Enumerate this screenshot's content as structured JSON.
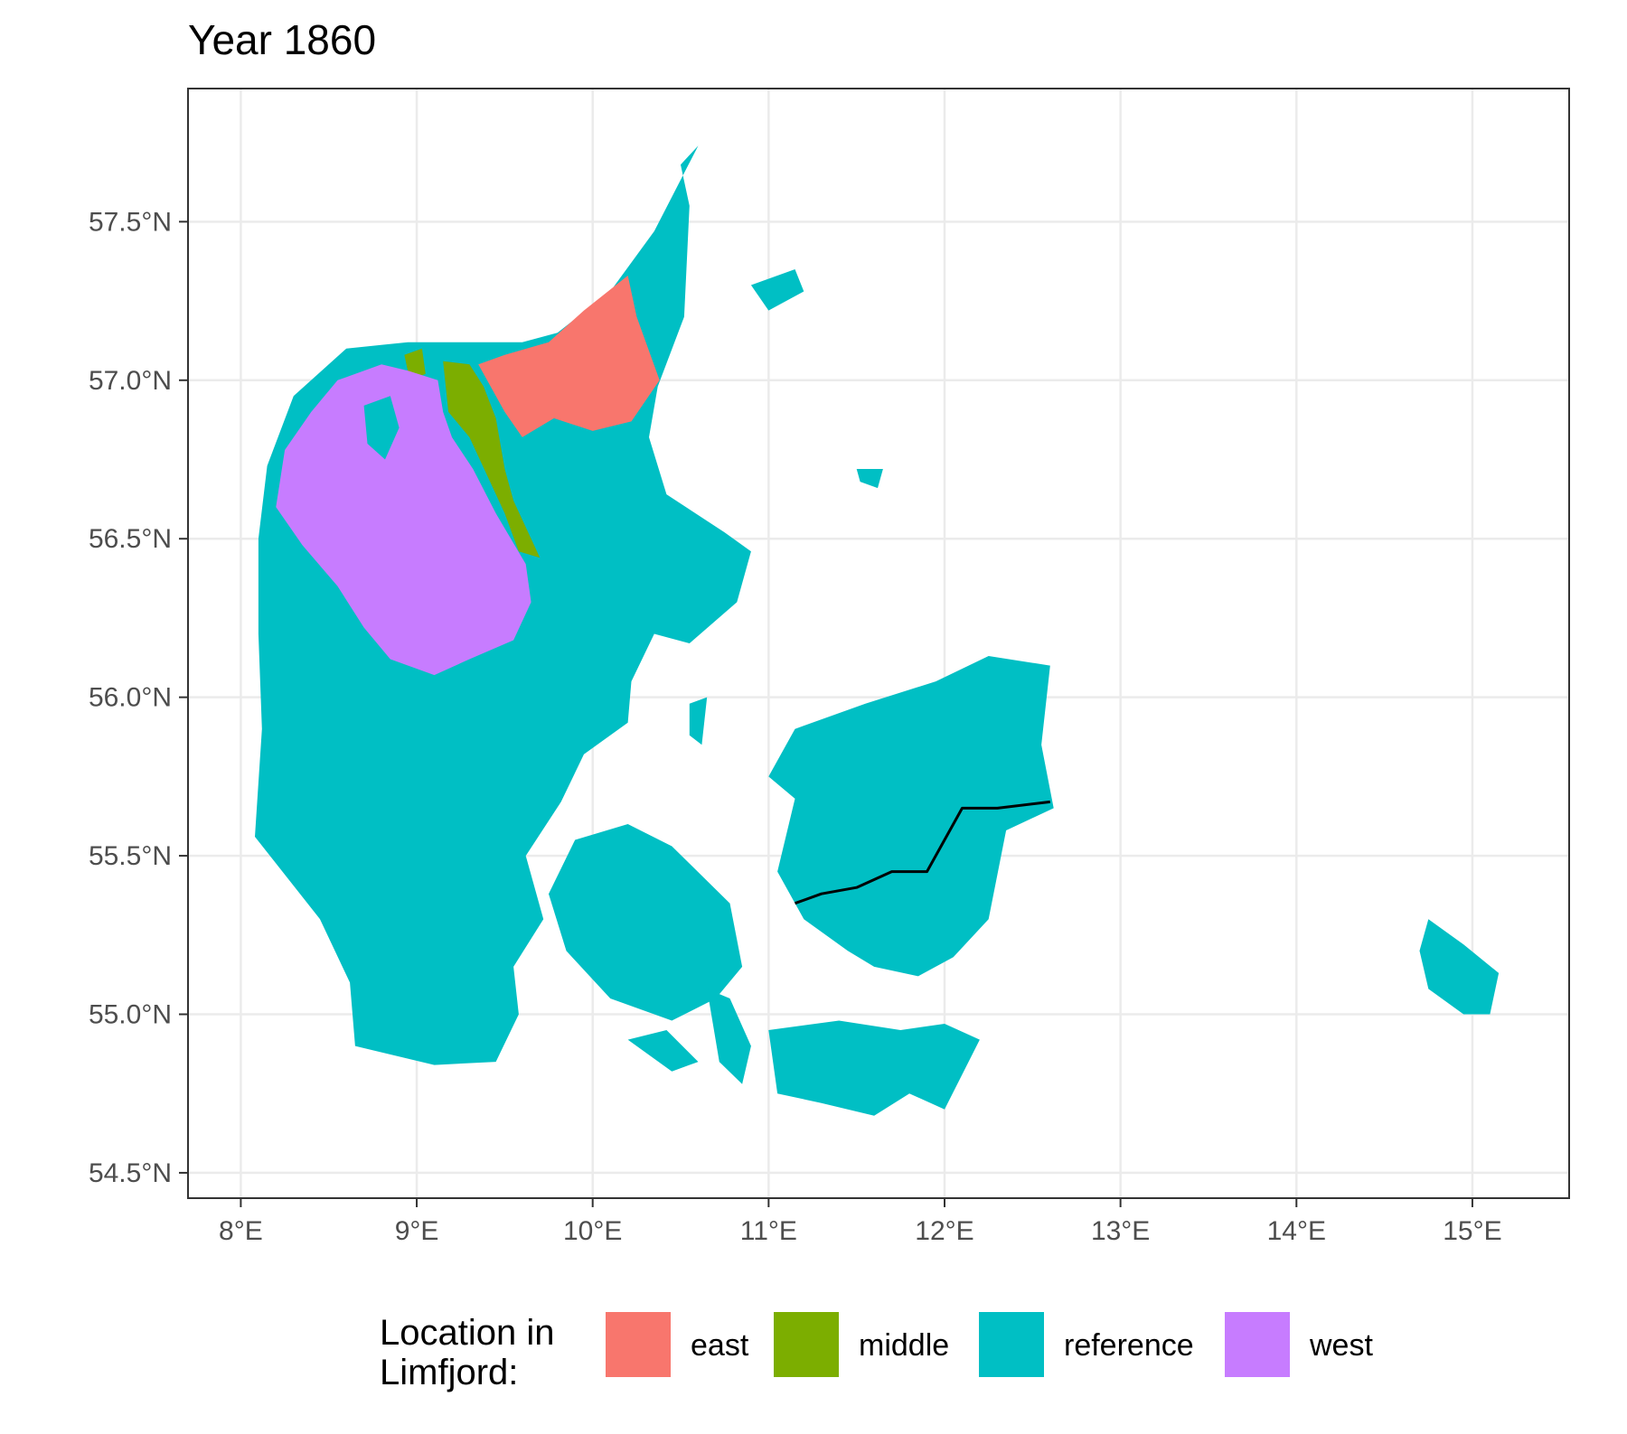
{
  "title": "Year 1860",
  "map": {
    "projection": "equirectangular",
    "lon_range": [
      7.7,
      15.55
    ],
    "lat_range": [
      54.42,
      57.92
    ],
    "grid": true,
    "x_ticks": [
      {
        "lon": 8,
        "label": "8°E"
      },
      {
        "lon": 9,
        "label": "9°E"
      },
      {
        "lon": 10,
        "label": "10°E"
      },
      {
        "lon": 11,
        "label": "11°E"
      },
      {
        "lon": 12,
        "label": "12°E"
      },
      {
        "lon": 13,
        "label": "13°E"
      },
      {
        "lon": 14,
        "label": "14°E"
      },
      {
        "lon": 15,
        "label": "15°E"
      }
    ],
    "y_ticks": [
      {
        "lat": 54.5,
        "label": "54.5°N"
      },
      {
        "lat": 55.0,
        "label": "55.0°N"
      },
      {
        "lat": 55.5,
        "label": "55.5°N"
      },
      {
        "lat": 56.0,
        "label": "56.0°N"
      },
      {
        "lat": 56.5,
        "label": "56.5°N"
      },
      {
        "lat": 57.0,
        "label": "57.0°N"
      },
      {
        "lat": 57.5,
        "label": "57.5°N"
      }
    ],
    "regions": [
      {
        "name": "jutland",
        "category": "reference",
        "coords": [
          [
            8.6,
            57.1
          ],
          [
            8.95,
            57.12
          ],
          [
            9.3,
            57.12
          ],
          [
            9.6,
            57.12
          ],
          [
            9.8,
            57.15
          ],
          [
            10.1,
            57.28
          ],
          [
            10.35,
            57.47
          ],
          [
            10.6,
            57.74
          ],
          [
            10.5,
            57.68
          ],
          [
            10.55,
            57.55
          ],
          [
            10.52,
            57.2
          ],
          [
            10.37,
            56.98
          ],
          [
            10.32,
            56.82
          ],
          [
            10.42,
            56.64
          ],
          [
            10.75,
            56.52
          ],
          [
            10.9,
            56.46
          ],
          [
            10.82,
            56.3
          ],
          [
            10.55,
            56.17
          ],
          [
            10.35,
            56.2
          ],
          [
            10.22,
            56.05
          ],
          [
            10.2,
            55.92
          ],
          [
            9.95,
            55.82
          ],
          [
            9.82,
            55.67
          ],
          [
            9.62,
            55.5
          ],
          [
            9.72,
            55.3
          ],
          [
            9.55,
            55.15
          ],
          [
            9.58,
            55.0
          ],
          [
            9.45,
            54.85
          ],
          [
            9.1,
            54.84
          ],
          [
            8.65,
            54.9
          ],
          [
            8.62,
            55.1
          ],
          [
            8.45,
            55.3
          ],
          [
            8.08,
            55.56
          ],
          [
            8.12,
            55.9
          ],
          [
            8.1,
            56.2
          ],
          [
            8.1,
            56.5
          ],
          [
            8.15,
            56.73
          ],
          [
            8.3,
            56.95
          ],
          [
            8.6,
            57.1
          ]
        ]
      },
      {
        "name": "east",
        "category": "east",
        "coords": [
          [
            9.35,
            57.05
          ],
          [
            9.5,
            57.08
          ],
          [
            9.75,
            57.12
          ],
          [
            9.95,
            57.22
          ],
          [
            10.2,
            57.33
          ],
          [
            10.25,
            57.2
          ],
          [
            10.38,
            57.0
          ],
          [
            10.22,
            56.87
          ],
          [
            10.0,
            56.84
          ],
          [
            9.78,
            56.88
          ],
          [
            9.6,
            56.82
          ],
          [
            9.5,
            56.9
          ],
          [
            9.42,
            56.98
          ],
          [
            9.35,
            57.05
          ]
        ]
      },
      {
        "name": "middle",
        "category": "middle",
        "coords": [
          [
            9.15,
            57.06
          ],
          [
            9.3,
            57.05
          ],
          [
            9.38,
            56.98
          ],
          [
            9.45,
            56.88
          ],
          [
            9.5,
            56.72
          ],
          [
            9.55,
            56.62
          ],
          [
            9.65,
            56.5
          ],
          [
            9.7,
            56.44
          ],
          [
            9.58,
            56.46
          ],
          [
            9.5,
            56.58
          ],
          [
            9.4,
            56.7
          ],
          [
            9.3,
            56.82
          ],
          [
            9.18,
            56.9
          ],
          [
            9.15,
            57.06
          ]
        ]
      },
      {
        "name": "middle-tip",
        "category": "middle",
        "coords": [
          [
            8.93,
            57.08
          ],
          [
            9.03,
            57.1
          ],
          [
            9.05,
            57.02
          ],
          [
            8.96,
            57.0
          ],
          [
            8.93,
            57.08
          ]
        ]
      },
      {
        "name": "west",
        "category": "west",
        "coords": [
          [
            8.55,
            57.0
          ],
          [
            8.8,
            57.05
          ],
          [
            8.95,
            57.03
          ],
          [
            9.12,
            57.0
          ],
          [
            9.15,
            56.9
          ],
          [
            9.2,
            56.82
          ],
          [
            9.32,
            56.72
          ],
          [
            9.45,
            56.58
          ],
          [
            9.62,
            56.42
          ],
          [
            9.65,
            56.3
          ],
          [
            9.55,
            56.18
          ],
          [
            9.3,
            56.12
          ],
          [
            9.1,
            56.07
          ],
          [
            8.85,
            56.12
          ],
          [
            8.7,
            56.22
          ],
          [
            8.55,
            56.35
          ],
          [
            8.35,
            56.48
          ],
          [
            8.2,
            56.6
          ],
          [
            8.25,
            56.78
          ],
          [
            8.4,
            56.9
          ],
          [
            8.55,
            57.0
          ]
        ]
      },
      {
        "name": "mors",
        "category": "reference",
        "coords": [
          [
            8.7,
            56.92
          ],
          [
            8.85,
            56.95
          ],
          [
            8.9,
            56.85
          ],
          [
            8.82,
            56.75
          ],
          [
            8.72,
            56.8
          ],
          [
            8.7,
            56.92
          ]
        ]
      },
      {
        "name": "funen",
        "category": "reference",
        "coords": [
          [
            9.9,
            55.55
          ],
          [
            10.2,
            55.6
          ],
          [
            10.45,
            55.53
          ],
          [
            10.78,
            55.35
          ],
          [
            10.85,
            55.15
          ],
          [
            10.7,
            55.05
          ],
          [
            10.45,
            54.98
          ],
          [
            10.1,
            55.05
          ],
          [
            9.85,
            55.2
          ],
          [
            9.75,
            55.38
          ],
          [
            9.9,
            55.55
          ]
        ]
      },
      {
        "name": "zealand",
        "category": "reference",
        "coords": [
          [
            11.15,
            55.9
          ],
          [
            11.55,
            55.98
          ],
          [
            11.95,
            56.05
          ],
          [
            12.25,
            56.13
          ],
          [
            12.6,
            56.1
          ],
          [
            12.55,
            55.85
          ],
          [
            12.62,
            55.65
          ],
          [
            12.35,
            55.58
          ],
          [
            12.25,
            55.3
          ],
          [
            12.05,
            55.18
          ],
          [
            11.85,
            55.12
          ],
          [
            11.6,
            55.15
          ],
          [
            11.45,
            55.2
          ],
          [
            11.2,
            55.3
          ],
          [
            11.05,
            55.45
          ],
          [
            11.15,
            55.68
          ],
          [
            11.0,
            55.75
          ],
          [
            11.15,
            55.9
          ]
        ]
      },
      {
        "name": "lolland-falster",
        "category": "reference",
        "coords": [
          [
            11.0,
            54.95
          ],
          [
            11.4,
            54.98
          ],
          [
            11.75,
            54.95
          ],
          [
            12.0,
            54.97
          ],
          [
            12.2,
            54.92
          ],
          [
            12.0,
            54.7
          ],
          [
            11.8,
            54.75
          ],
          [
            11.6,
            54.68
          ],
          [
            11.3,
            54.72
          ],
          [
            11.05,
            54.75
          ],
          [
            11.0,
            54.95
          ]
        ]
      },
      {
        "name": "bornholm",
        "category": "reference",
        "coords": [
          [
            14.75,
            55.3
          ],
          [
            14.95,
            55.22
          ],
          [
            15.15,
            55.13
          ],
          [
            15.1,
            55.0
          ],
          [
            14.95,
            55.0
          ],
          [
            14.75,
            55.08
          ],
          [
            14.7,
            55.2
          ],
          [
            14.75,
            55.3
          ]
        ]
      },
      {
        "name": "laeso",
        "category": "reference",
        "coords": [
          [
            10.9,
            57.3
          ],
          [
            11.15,
            57.35
          ],
          [
            11.2,
            57.28
          ],
          [
            11.0,
            57.22
          ],
          [
            10.9,
            57.3
          ]
        ]
      },
      {
        "name": "anholt",
        "category": "reference",
        "coords": [
          [
            11.5,
            56.72
          ],
          [
            11.65,
            56.72
          ],
          [
            11.62,
            56.66
          ],
          [
            11.52,
            56.68
          ],
          [
            11.5,
            56.72
          ]
        ]
      },
      {
        "name": "langeland",
        "category": "reference",
        "coords": [
          [
            10.65,
            55.08
          ],
          [
            10.78,
            55.05
          ],
          [
            10.9,
            54.9
          ],
          [
            10.85,
            54.78
          ],
          [
            10.72,
            54.85
          ],
          [
            10.65,
            55.08
          ]
        ]
      },
      {
        "name": "aero",
        "category": "reference",
        "coords": [
          [
            10.2,
            54.92
          ],
          [
            10.42,
            54.95
          ],
          [
            10.6,
            54.85
          ],
          [
            10.45,
            54.82
          ],
          [
            10.2,
            54.92
          ]
        ]
      },
      {
        "name": "samso",
        "category": "reference",
        "coords": [
          [
            10.55,
            55.98
          ],
          [
            10.65,
            56.0
          ],
          [
            10.62,
            55.85
          ],
          [
            10.55,
            55.88
          ],
          [
            10.55,
            55.98
          ]
        ]
      }
    ],
    "line": {
      "coords": [
        [
          11.15,
          55.35
        ],
        [
          11.3,
          55.38
        ],
        [
          11.5,
          55.4
        ],
        [
          11.7,
          55.45
        ],
        [
          11.9,
          55.45
        ],
        [
          12.0,
          55.55
        ],
        [
          12.1,
          55.65
        ],
        [
          12.3,
          55.65
        ],
        [
          12.6,
          55.67
        ]
      ]
    }
  },
  "legend": {
    "title": "Location in\nLimfjord:",
    "placement": "bottom",
    "items": [
      {
        "key": "east",
        "label": "east",
        "color": "#F8766D"
      },
      {
        "key": "middle",
        "label": "middle",
        "color": "#7CAE00"
      },
      {
        "key": "reference",
        "label": "reference",
        "color": "#00BFC4"
      },
      {
        "key": "west",
        "label": "west",
        "color": "#C77CFF"
      }
    ]
  },
  "colors": {
    "panel_border": "#333333",
    "grid": "#ebebeb",
    "line": "#000000"
  }
}
